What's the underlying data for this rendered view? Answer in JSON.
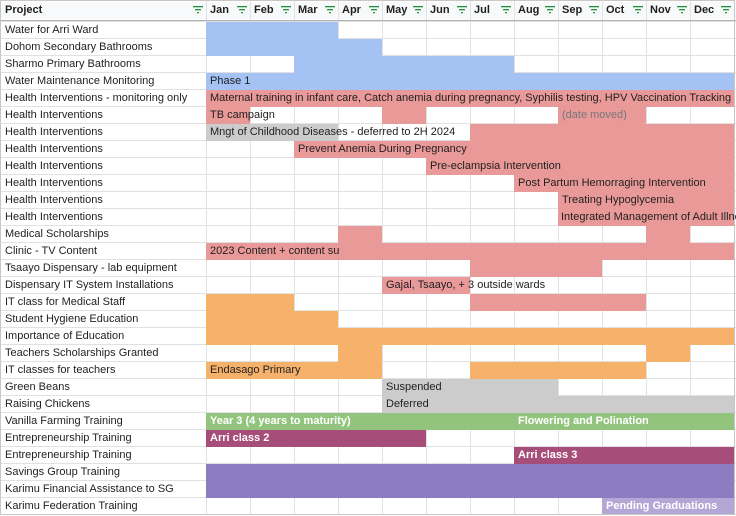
{
  "header": {
    "project_label": "Project",
    "months": [
      "Jan",
      "Feb",
      "Mar",
      "Apr",
      "May",
      "Jun",
      "Jul",
      "Aug",
      "Sep",
      "Oct",
      "Nov",
      "Dec"
    ],
    "filter_icon": "filter-icon"
  },
  "colors": {
    "blue": "#a4c2f4",
    "red": "#ea9999",
    "orange": "#f6b26b",
    "grey": "#cccccc",
    "green": "#93c47d",
    "maroon": "#a64d79",
    "purple": "#8e7cc3",
    "lavender": "#b4a7d6",
    "header_bg": "#f8f9fa",
    "filter_green": "#1e8e3e"
  },
  "rows": [
    {
      "label": "Water for Arri Ward",
      "bars": [
        {
          "start": 0,
          "end": 3,
          "color": "blue"
        }
      ]
    },
    {
      "label": "Dohom Secondary Bathrooms",
      "bars": [
        {
          "start": 0,
          "end": 4,
          "color": "blue"
        }
      ]
    },
    {
      "label": "Sharmo Primary Bathrooms",
      "bars": [
        {
          "start": 2,
          "end": 7,
          "color": "blue"
        }
      ]
    },
    {
      "label": "Water Maintenance Monitoring",
      "bars": [
        {
          "start": 0,
          "end": 12,
          "color": "blue",
          "text": "Phase 1"
        }
      ]
    },
    {
      "label": "Health Interventions - monitoring only",
      "bars": [
        {
          "start": 0,
          "end": 12,
          "color": "red",
          "text": "Maternal training in infant care, Catch anemia during pregnancy, Syphilis testing, HPV Vaccination Tracking"
        }
      ]
    },
    {
      "label": "Health Interventions",
      "bars": [
        {
          "start": 0,
          "end": 1,
          "color": "red",
          "text": "TB campaign"
        },
        {
          "start": 4,
          "end": 5,
          "color": "red"
        },
        {
          "start": 8,
          "end": 10,
          "color": "red",
          "text": "(date moved)",
          "style": "grey"
        }
      ]
    },
    {
      "label": "Health Interventions",
      "bars": [
        {
          "start": 0,
          "end": 3,
          "color": "grey",
          "text": "Mngt of Childhood Diseases - deferred to 2H 2024"
        },
        {
          "start": 6,
          "end": 12,
          "color": "red"
        }
      ]
    },
    {
      "label": "Health Interventions",
      "bars": [
        {
          "start": 2,
          "end": 12,
          "color": "red",
          "text": "Prevent Anemia During Pregnancy"
        }
      ]
    },
    {
      "label": "Health Interventions",
      "bars": [
        {
          "start": 5,
          "end": 12,
          "color": "red",
          "text": "Pre-eclampsia Intervention"
        }
      ]
    },
    {
      "label": "Health Interventions",
      "bars": [
        {
          "start": 7,
          "end": 12,
          "color": "red",
          "text": "Post Partum Hemorraging Intervention"
        }
      ]
    },
    {
      "label": "Health Interventions",
      "bars": [
        {
          "start": 8,
          "end": 12,
          "color": "red",
          "text": "Treating Hypoglycemia"
        }
      ]
    },
    {
      "label": "Health Interventions",
      "bars": [
        {
          "start": 8,
          "end": 12,
          "color": "red",
          "text": "Integrated Management of Adult Illnesses",
          "text_offset": -1
        }
      ]
    },
    {
      "label": "Medical Scholarships",
      "bars": [
        {
          "start": 3,
          "end": 4,
          "color": "red"
        },
        {
          "start": 10,
          "end": 11,
          "color": "red"
        }
      ]
    },
    {
      "label": "Clinic - TV Content",
      "bars": [
        {
          "start": 0,
          "end": 12,
          "color": "red",
          "text": "2023 Content + content su"
        }
      ]
    },
    {
      "label": "Tsaayo Dispensary - lab equipment",
      "bars": [
        {
          "start": 6,
          "end": 9,
          "color": "red"
        }
      ]
    },
    {
      "label": "Dispensary IT System Installations",
      "bars": [
        {
          "start": 4,
          "end": 6,
          "color": "red",
          "text": "Gajal, Tsaayo, + 3 outside wards"
        }
      ]
    },
    {
      "label": "IT class for Medical Staff",
      "bars": [
        {
          "start": 0,
          "end": 2,
          "color": "orange"
        },
        {
          "start": 6,
          "end": 10,
          "color": "red"
        }
      ]
    },
    {
      "label": "Student Hygiene Education",
      "bars": [
        {
          "start": 0,
          "end": 3,
          "color": "orange"
        }
      ]
    },
    {
      "label": "Importance of Education",
      "bars": [
        {
          "start": 0,
          "end": 12,
          "color": "orange"
        }
      ]
    },
    {
      "label": "Teachers Scholarships Granted",
      "bars": [
        {
          "start": 3,
          "end": 4,
          "color": "orange"
        },
        {
          "start": 10,
          "end": 11,
          "color": "orange"
        }
      ]
    },
    {
      "label": "IT classes for teachers",
      "bars": [
        {
          "start": 0,
          "end": 4,
          "color": "orange",
          "text": "Endasago Primary"
        },
        {
          "start": 6,
          "end": 10,
          "color": "orange"
        }
      ]
    },
    {
      "label": "Green Beans",
      "bars": [
        {
          "start": 4,
          "end": 8,
          "color": "grey",
          "text": "Suspended"
        }
      ]
    },
    {
      "label": "Raising Chickens",
      "bars": [
        {
          "start": 4,
          "end": 12,
          "color": "grey",
          "text": "Deferred"
        }
      ]
    },
    {
      "label": "Vanilla Farming Training",
      "bars": [
        {
          "start": 0,
          "end": 7,
          "color": "green",
          "text": "Year 3 (4 years to maturity)",
          "style": "white"
        },
        {
          "start": 7,
          "end": 12,
          "color": "green",
          "text": "Flowering and Polination",
          "style": "white"
        }
      ]
    },
    {
      "label": "Entrepreneurship Training",
      "bars": [
        {
          "start": 0,
          "end": 5,
          "color": "maroon",
          "text": "Arri class 2",
          "style": "white"
        }
      ]
    },
    {
      "label": "Entrepreneurship Training",
      "bars": [
        {
          "start": 7,
          "end": 12,
          "color": "maroon",
          "text": "Arri class 3",
          "style": "white"
        }
      ]
    },
    {
      "label": "Savings Group Training",
      "bars": [
        {
          "start": 0,
          "end": 12,
          "color": "purple"
        }
      ]
    },
    {
      "label": "Karimu Financial Assistance to SG",
      "bars": [
        {
          "start": 0,
          "end": 12,
          "color": "purple"
        }
      ]
    },
    {
      "label": "Karimu Federation Training",
      "bars": [
        {
          "start": 9,
          "end": 12,
          "color": "lavender",
          "text": "Pending Graduations",
          "style": "white"
        }
      ]
    }
  ]
}
